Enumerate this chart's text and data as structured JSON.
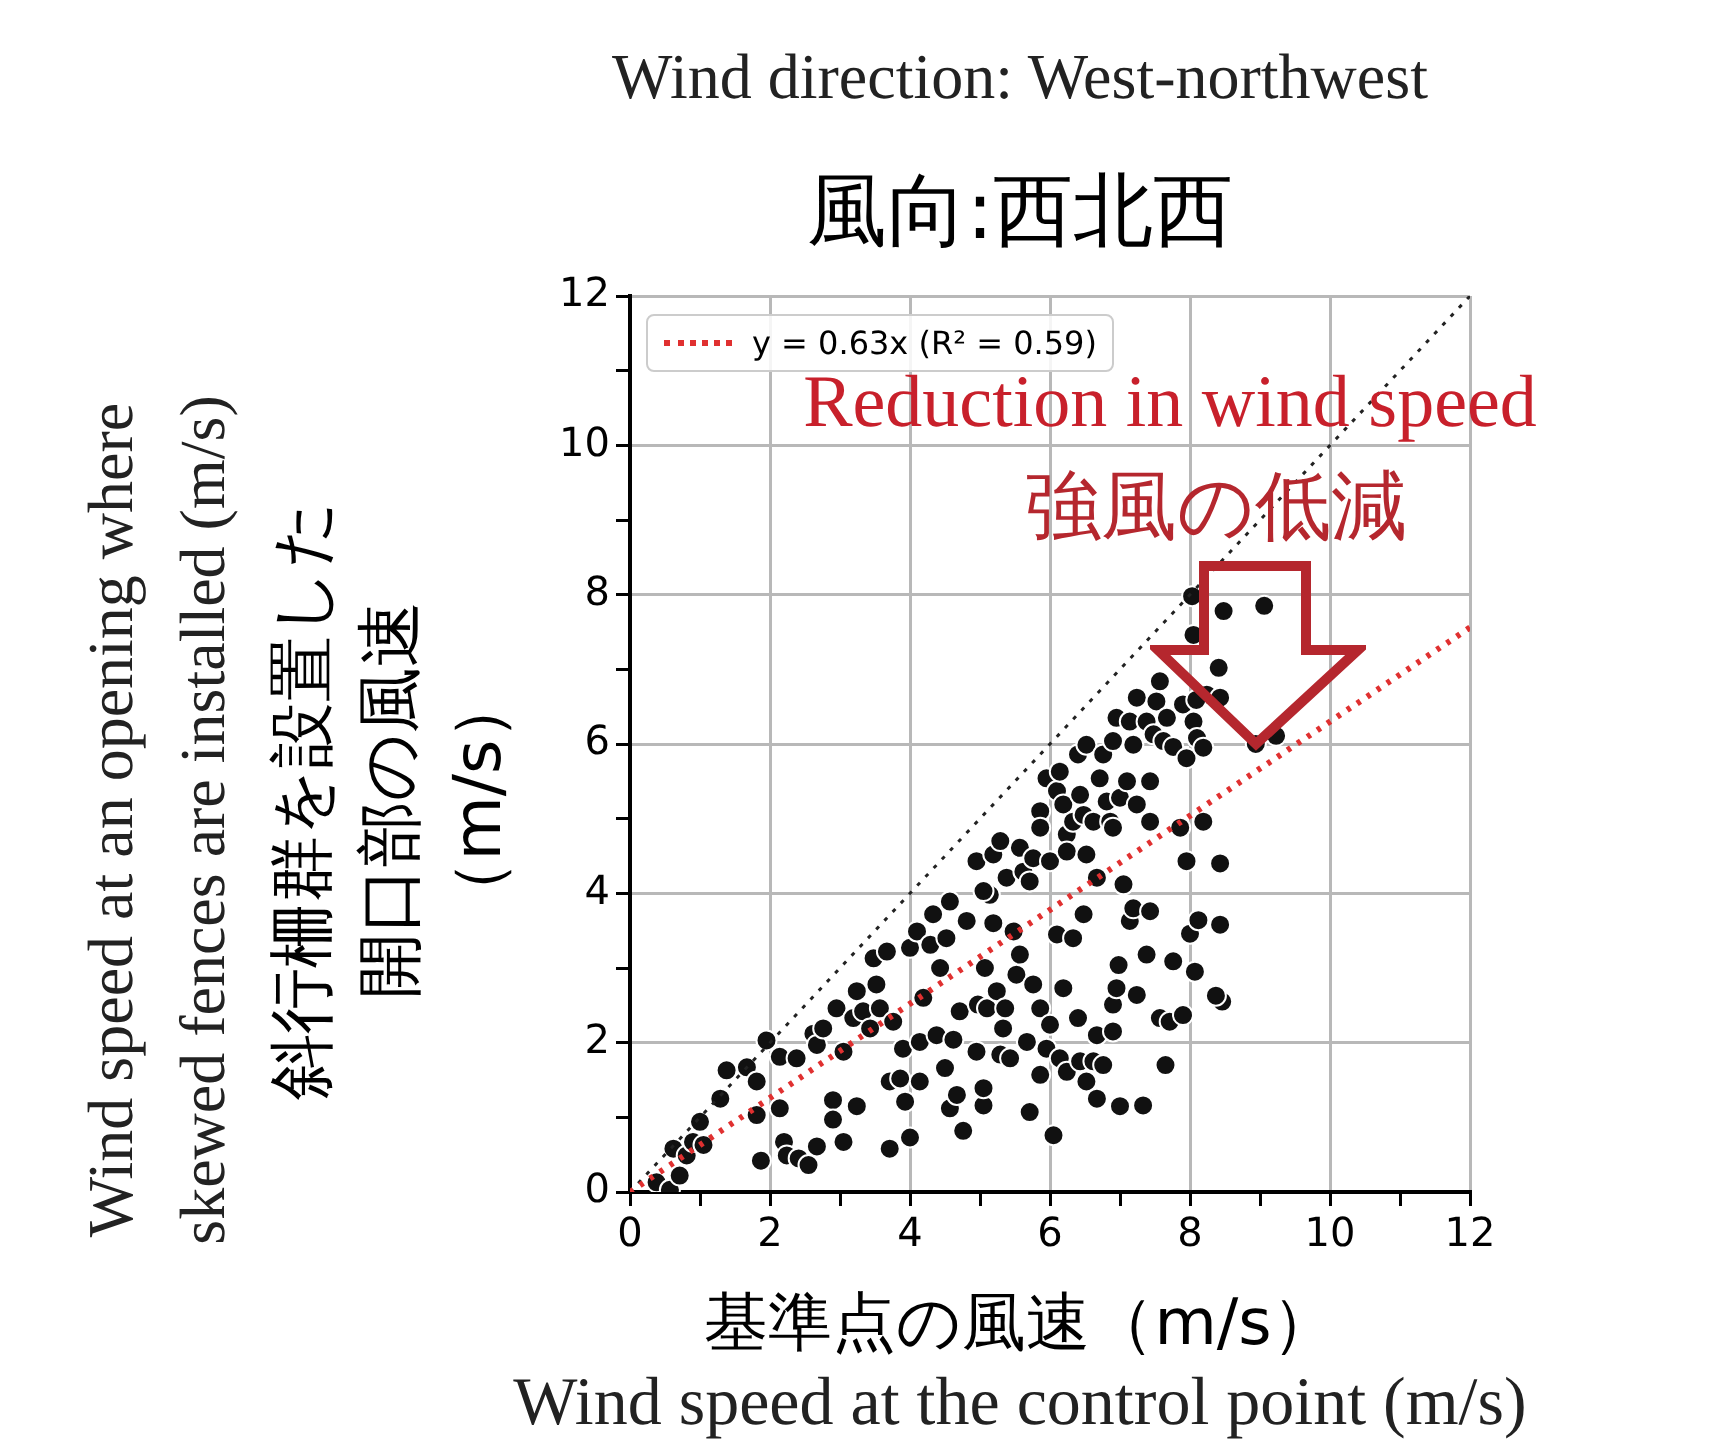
{
  "chart_data": {
    "type": "scatter",
    "title": "Wind direction: West-northwest",
    "subtitle": "風向:西北西",
    "xlabel": "基準点の風速（m/s）",
    "ylabel": "斜行柵群を設置した開口部の風速（m/s）",
    "annotations": [
      "Reduction in wind speed",
      "強風の低減",
      "Wind speed at the control point (m/s)",
      "Wind speed at an opening where skewed fences are installed (m/s)"
    ],
    "xlim": [
      0,
      12
    ],
    "ylim": [
      0,
      12
    ],
    "xticks": [
      0,
      {
        "value": 1,
        "label": null
      },
      2,
      {
        "value": 3,
        "label": null
      },
      4,
      {
        "value": 5,
        "label": null
      },
      6,
      {
        "value": 7,
        "label": null
      },
      8,
      {
        "value": 9,
        "label": null
      },
      10,
      {
        "value": 11,
        "label": null
      },
      12
    ],
    "yticks": [
      0,
      {
        "value": 1,
        "label": null
      },
      2,
      {
        "value": 3,
        "label": null
      },
      4,
      {
        "value": 5,
        "label": null
      },
      6,
      {
        "value": 7,
        "label": null
      },
      8,
      {
        "value": 9,
        "label": null
      },
      10,
      {
        "value": 11,
        "label": null
      },
      12
    ],
    "grid": true,
    "legend": "top left",
    "series": [
      {
        "color": "#111111",
        "marker": "circle",
        "x": [
          0.38,
          0.57,
          0.62,
          0.71,
          0.81,
          0.9,
          1.0,
          1.05,
          1.29,
          1.38,
          1.67,
          1.81,
          1.81,
          1.87,
          1.95,
          2.14,
          2.14,
          2.2,
          2.24,
          2.38,
          2.41,
          2.55,
          2.62,
          2.67,
          2.67,
          2.76,
          2.9,
          2.9,
          2.95,
          3.05,
          3.05,
          3.19,
          3.24,
          3.24,
          3.33,
          3.43,
          3.52,
          3.57,
          3.48,
          3.67,
          3.71,
          3.71,
          3.76,
          3.86,
          3.9,
          3.93,
          4.0,
          4.0,
          4.1,
          4.14,
          4.14,
          4.19,
          4.29,
          4.33,
          4.38,
          4.43,
          4.5,
          4.52,
          4.57,
          4.57,
          4.62,
          4.67,
          4.71,
          4.76,
          4.81,
          4.95,
          4.97,
          5.05,
          5.05,
          5.07,
          5.1,
          5.14,
          5.19,
          5.24,
          5.29,
          5.33,
          5.36,
          5.43,
          5.48,
          5.52,
          5.57,
          5.67,
          5.71,
          5.76,
          5.86,
          5.86,
          5.95,
          6.0,
          6.05,
          6.1,
          6.14,
          6.19,
          6.24,
          6.33,
          6.4,
          6.43,
          6.48,
          6.52,
          6.62,
          6.67,
          6.67,
          6.76,
          6.9,
          6.9,
          6.95,
          6.98,
          7.0,
          7.14,
          7.19,
          7.24,
          7.33,
          7.38,
          7.43,
          7.57,
          7.65,
          7.71,
          7.76,
          7.9,
          8.0,
          8.07,
          8.12,
          8.43,
          8.46,
          8.37,
          4.95,
          5.05,
          5.19,
          5.29,
          5.38,
          5.57,
          5.62,
          5.71,
          5.76,
          5.86,
          5.86,
          5.95,
          6.0,
          6.1,
          6.14,
          6.19,
          6.24,
          6.24,
          6.33,
          6.4,
          6.43,
          6.48,
          6.52,
          6.52,
          6.62,
          6.67,
          6.71,
          6.76,
          6.81,
          6.86,
          6.9,
          6.9,
          6.95,
          7.0,
          7.05,
          7.1,
          7.14,
          7.19,
          7.24,
          7.24,
          7.38,
          7.43,
          7.43,
          7.48,
          7.52,
          7.57,
          7.62,
          7.67,
          7.76,
          7.86,
          7.9,
          7.95,
          7.95,
          8.05,
          8.05,
          8.1,
          8.19,
          8.24,
          8.19,
          8.41,
          8.43,
          8.48,
          8.43,
          8.03,
          9.06,
          8.94,
          9.23,
          8.09
        ],
        "values": [
          0.13,
          0.03,
          0.58,
          0.22,
          0.49,
          0.67,
          0.94,
          0.63,
          1.25,
          1.63,
          1.67,
          1.48,
          1.03,
          0.42,
          2.03,
          1.81,
          1.12,
          0.67,
          0.49,
          1.79,
          0.45,
          0.36,
          2.12,
          1.97,
          0.61,
          2.19,
          1.23,
          0.97,
          2.46,
          1.88,
          0.67,
          2.33,
          2.69,
          1.15,
          2.42,
          2.19,
          2.78,
          2.46,
          3.13,
          3.22,
          0.58,
          1.48,
          2.28,
          1.52,
          1.92,
          1.21,
          3.27,
          0.73,
          3.49,
          2.01,
          1.48,
          2.6,
          3.31,
          3.72,
          2.1,
          3.0,
          1.66,
          3.4,
          3.89,
          1.12,
          2.04,
          1.3,
          2.42,
          0.82,
          3.63,
          1.88,
          2.51,
          1.16,
          1.39,
          3.0,
          2.46,
          3.98,
          3.6,
          2.69,
          1.84,
          2.19,
          2.46,
          1.79,
          3.49,
          2.91,
          3.18,
          2.01,
          1.07,
          2.78,
          2.46,
          1.57,
          1.92,
          2.24,
          0.76,
          3.45,
          1.79,
          2.73,
          1.61,
          3.4,
          2.33,
          1.75,
          3.72,
          1.48,
          1.75,
          2.1,
          1.25,
          1.7,
          2.15,
          2.51,
          2.73,
          3.04,
          1.15,
          3.63,
          3.8,
          2.64,
          1.16,
          3.18,
          3.76,
          2.33,
          1.7,
          2.28,
          3.09,
          2.37,
          3.46,
          2.95,
          3.64,
          3.58,
          2.55,
          2.63,
          4.43,
          4.03,
          4.52,
          4.7,
          4.21,
          4.61,
          4.29,
          4.16,
          4.47,
          5.1,
          4.88,
          5.54,
          4.43,
          5.37,
          5.63,
          5.19,
          4.79,
          4.56,
          4.96,
          5.86,
          5.32,
          5.05,
          5.99,
          4.52,
          4.96,
          4.21,
          5.54,
          5.86,
          5.23,
          4.96,
          6.04,
          4.88,
          6.35,
          5.28,
          4.12,
          5.5,
          6.3,
          5.99,
          6.62,
          5.19,
          6.3,
          5.5,
          4.96,
          6.13,
          6.57,
          6.84,
          6.04,
          6.35,
          5.96,
          4.88,
          6.53,
          5.81,
          4.43,
          7.46,
          6.3,
          6.08,
          5.95,
          6.66,
          4.96,
          7.02,
          6.62,
          7.78,
          4.4,
          7.98,
          7.85,
          6.0,
          6.11,
          6.59
        ]
      },
      {
        "type": "line",
        "name": "y = 0.63x (R² = 0.59)",
        "color": "#e03030",
        "line_style": "dotted",
        "marker": "none",
        "x": [
          0,
          12
        ],
        "values": [
          0,
          7.56
        ]
      },
      {
        "type": "line",
        "color": "#222222",
        "line_style": "dotted",
        "marker": "none",
        "x": [
          0,
          12
        ],
        "values": [
          0,
          12
        ]
      }
    ]
  }
}
